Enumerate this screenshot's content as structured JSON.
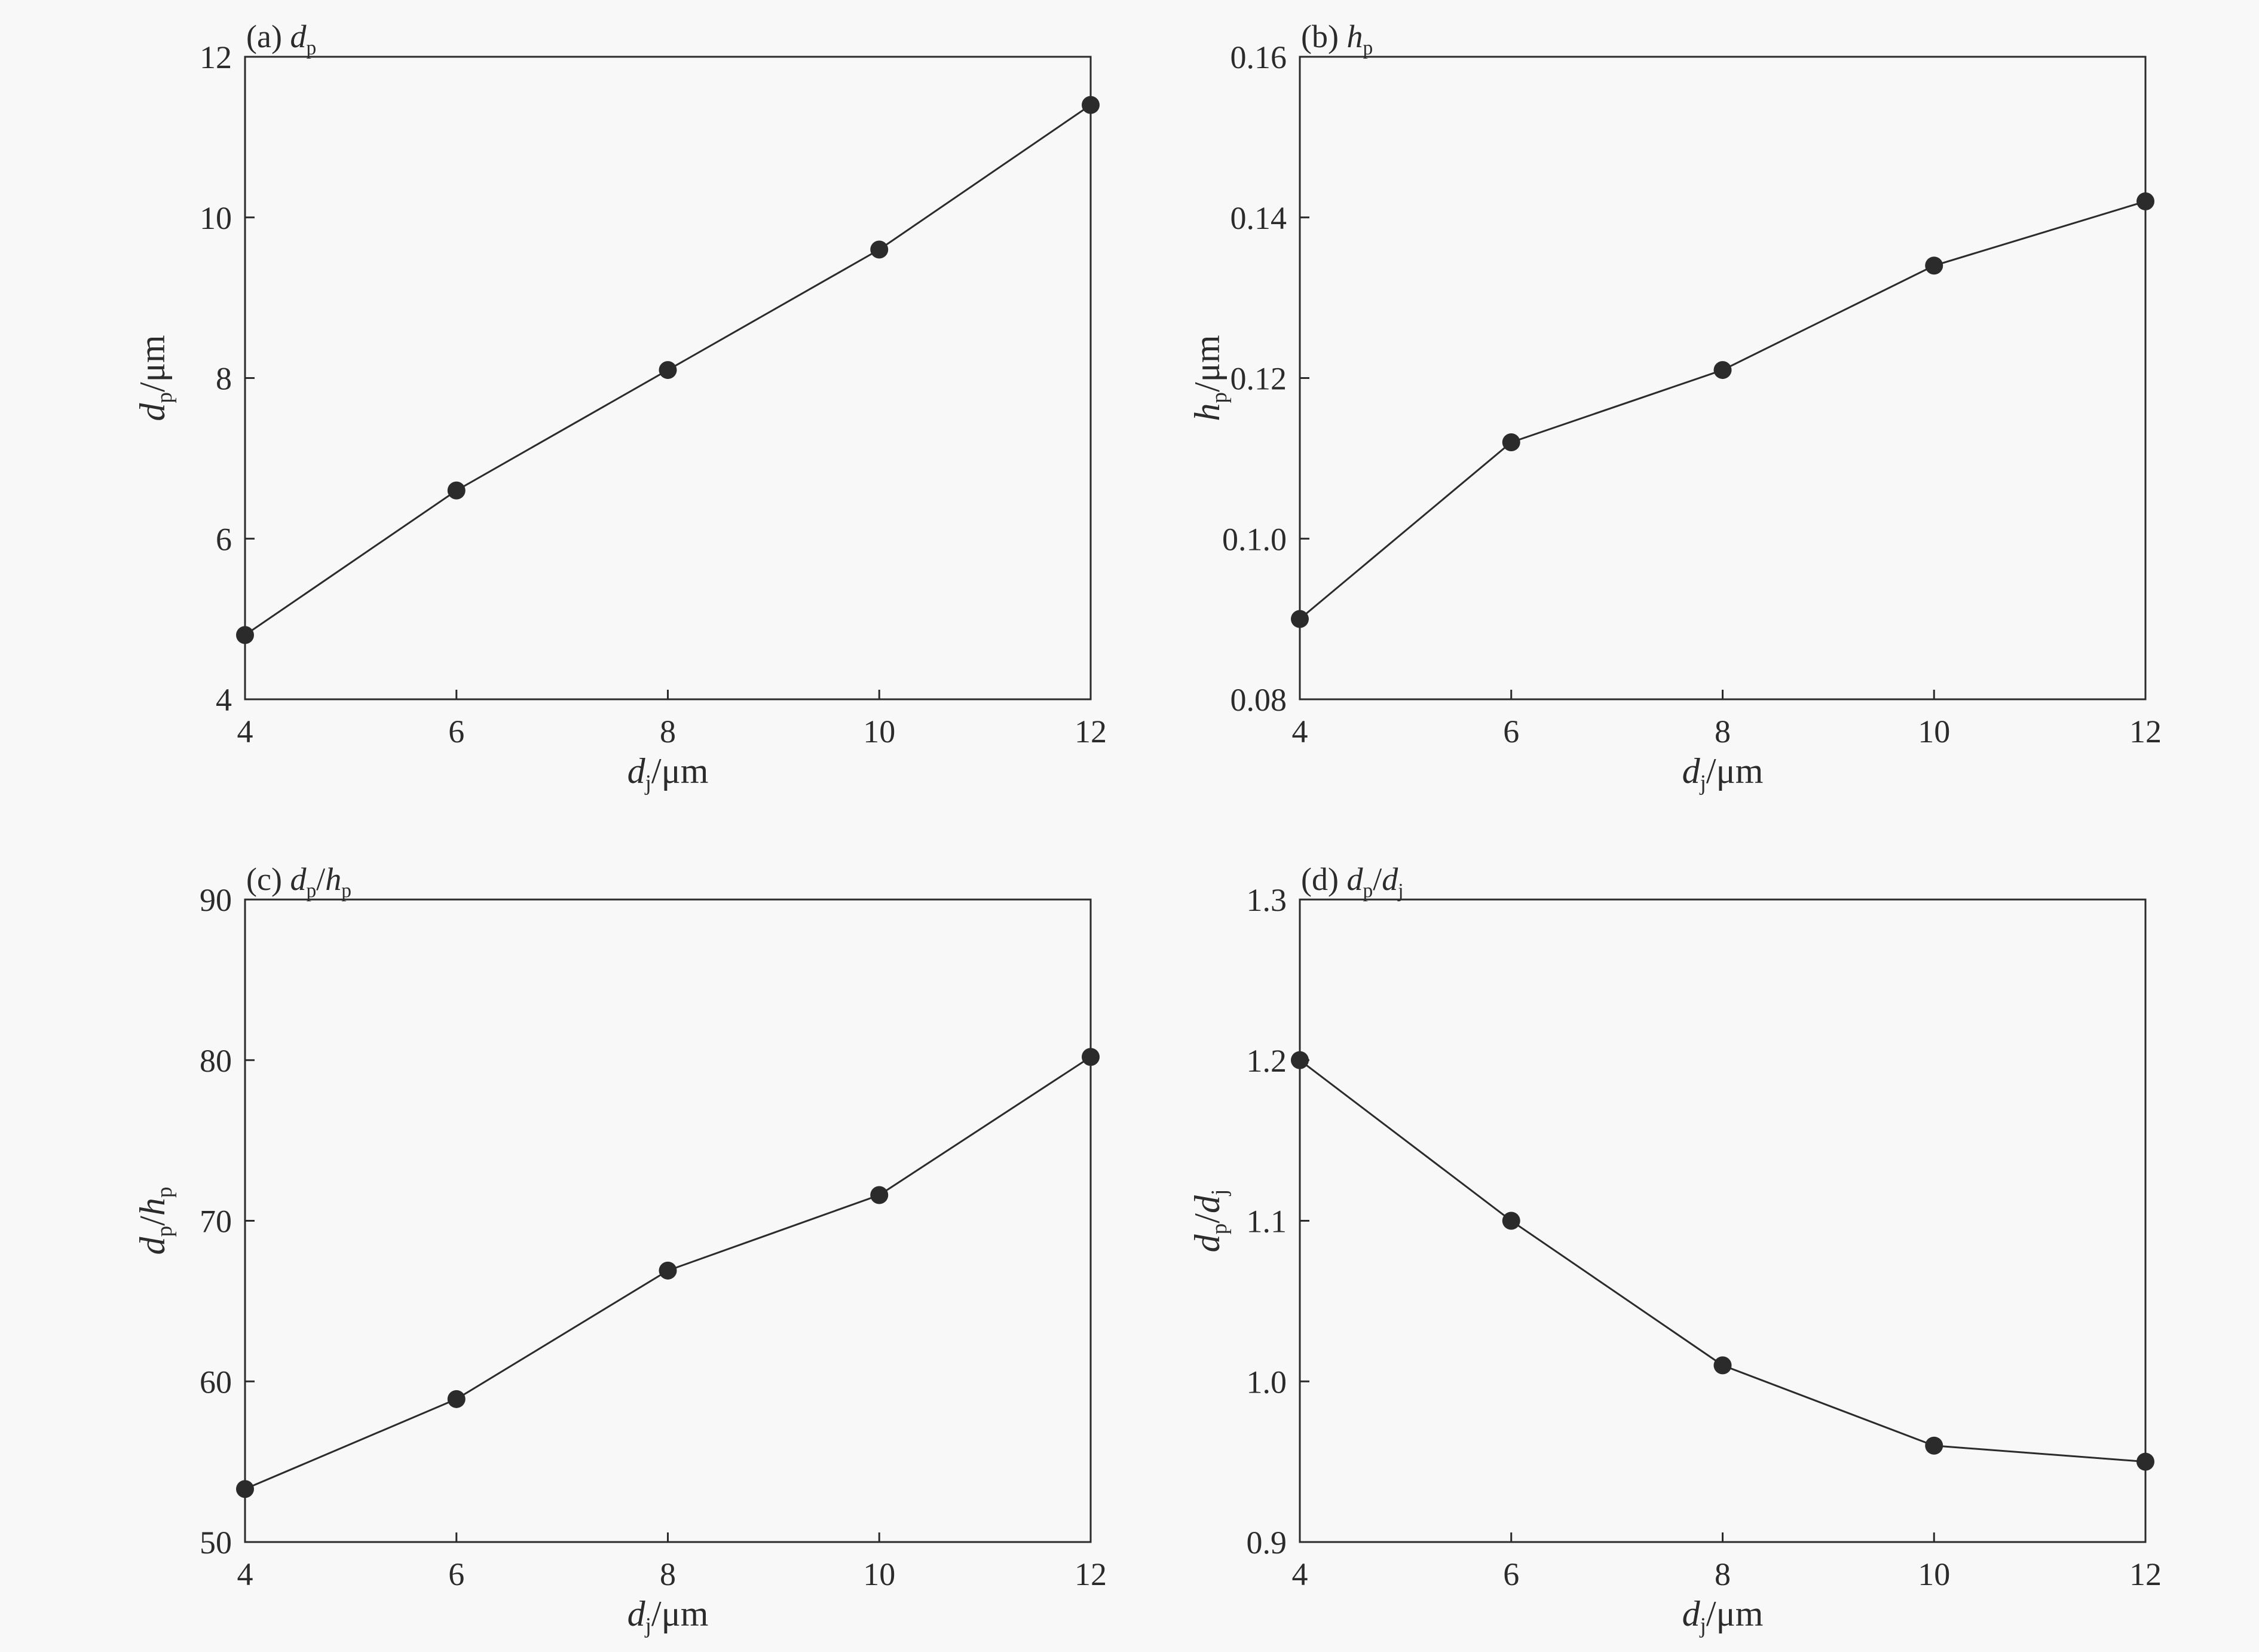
{
  "figure": {
    "background": "#f8f8f8",
    "ink_color": "#2b2b2b"
  },
  "chart_data": [
    {
      "type": "line",
      "panel": "a",
      "title": {
        "prefix": "(a) ",
        "parts": [
          [
            "d",
            "i"
          ],
          [
            "p",
            "sub"
          ]
        ]
      },
      "xlabel": [
        [
          "d",
          "i"
        ],
        [
          "j",
          "sub"
        ],
        [
          "/μm",
          "n"
        ]
      ],
      "ylabel": [
        [
          "d",
          "i"
        ],
        [
          "p",
          "sub"
        ],
        [
          "/μm",
          "n"
        ]
      ],
      "x": [
        4,
        6,
        8,
        10,
        12
      ],
      "y": [
        4.8,
        6.6,
        8.1,
        9.6,
        11.4
      ],
      "xlim": [
        4,
        12
      ],
      "ylim": [
        4,
        12
      ],
      "xticks": [
        "4",
        "6",
        "8",
        "10",
        "12"
      ],
      "yticks": [
        "4",
        "6",
        "8",
        "10",
        "12"
      ],
      "grid": false,
      "marker": "filled-circle"
    },
    {
      "type": "line",
      "panel": "b",
      "title": {
        "prefix": "(b) ",
        "parts": [
          [
            "h",
            "i"
          ],
          [
            "p",
            "sub"
          ]
        ]
      },
      "xlabel": [
        [
          "d",
          "i"
        ],
        [
          "j",
          "sub"
        ],
        [
          "/μm",
          "n"
        ]
      ],
      "ylabel": [
        [
          "h",
          "i"
        ],
        [
          "p",
          "sub"
        ],
        [
          "/μm",
          "n"
        ]
      ],
      "x": [
        4,
        6,
        8,
        10,
        12
      ],
      "y": [
        0.09,
        0.112,
        0.121,
        0.134,
        0.142
      ],
      "xlim": [
        4,
        12
      ],
      "ylim": [
        0.08,
        0.16
      ],
      "xticks": [
        "4",
        "6",
        "8",
        "10",
        "12"
      ],
      "yticks": [
        "0.08",
        "0.1.0",
        "0.12",
        "0.14",
        "0.16"
      ],
      "grid": false,
      "marker": "filled-circle"
    },
    {
      "type": "line",
      "panel": "c",
      "title": {
        "prefix": "(c) ",
        "parts": [
          [
            "d",
            "i"
          ],
          [
            "p",
            "sub"
          ],
          [
            "/",
            "n"
          ],
          [
            "h",
            "i"
          ],
          [
            "p",
            "sub"
          ]
        ]
      },
      "xlabel": [
        [
          "d",
          "i"
        ],
        [
          "j",
          "sub"
        ],
        [
          "/μm",
          "n"
        ]
      ],
      "ylabel": [
        [
          "d",
          "i"
        ],
        [
          "p",
          "sub"
        ],
        [
          "/",
          "n"
        ],
        [
          "h",
          "i"
        ],
        [
          "p",
          "sub"
        ]
      ],
      "x": [
        4,
        6,
        8,
        10,
        12
      ],
      "y": [
        53.3,
        58.9,
        66.9,
        71.6,
        80.2
      ],
      "xlim": [
        4,
        12
      ],
      "ylim": [
        50,
        90
      ],
      "xticks": [
        "4",
        "6",
        "8",
        "10",
        "12"
      ],
      "yticks": [
        "50",
        "60",
        "70",
        "80",
        "90"
      ],
      "grid": false,
      "marker": "filled-circle"
    },
    {
      "type": "line",
      "panel": "d",
      "title": {
        "prefix": "(d) ",
        "parts": [
          [
            "d",
            "i"
          ],
          [
            "p",
            "sub"
          ],
          [
            "/",
            "n"
          ],
          [
            "d",
            "i"
          ],
          [
            "j",
            "sub"
          ]
        ]
      },
      "xlabel": [
        [
          "d",
          "i"
        ],
        [
          "j",
          "sub"
        ],
        [
          "/μm",
          "n"
        ]
      ],
      "ylabel": [
        [
          "d",
          "i"
        ],
        [
          "p",
          "sub"
        ],
        [
          "/",
          "n"
        ],
        [
          "d",
          "i"
        ],
        [
          "j",
          "sub"
        ]
      ],
      "x": [
        4,
        6,
        8,
        10,
        12
      ],
      "y": [
        1.2,
        1.1,
        1.01,
        0.96,
        0.95
      ],
      "xlim": [
        4,
        12
      ],
      "ylim": [
        0.9,
        1.3
      ],
      "xticks": [
        "4",
        "6",
        "8",
        "10",
        "12"
      ],
      "yticks": [
        "0.9",
        "1.0",
        "1.1",
        "1.2",
        "1.3"
      ],
      "grid": false,
      "marker": "filled-circle"
    }
  ]
}
